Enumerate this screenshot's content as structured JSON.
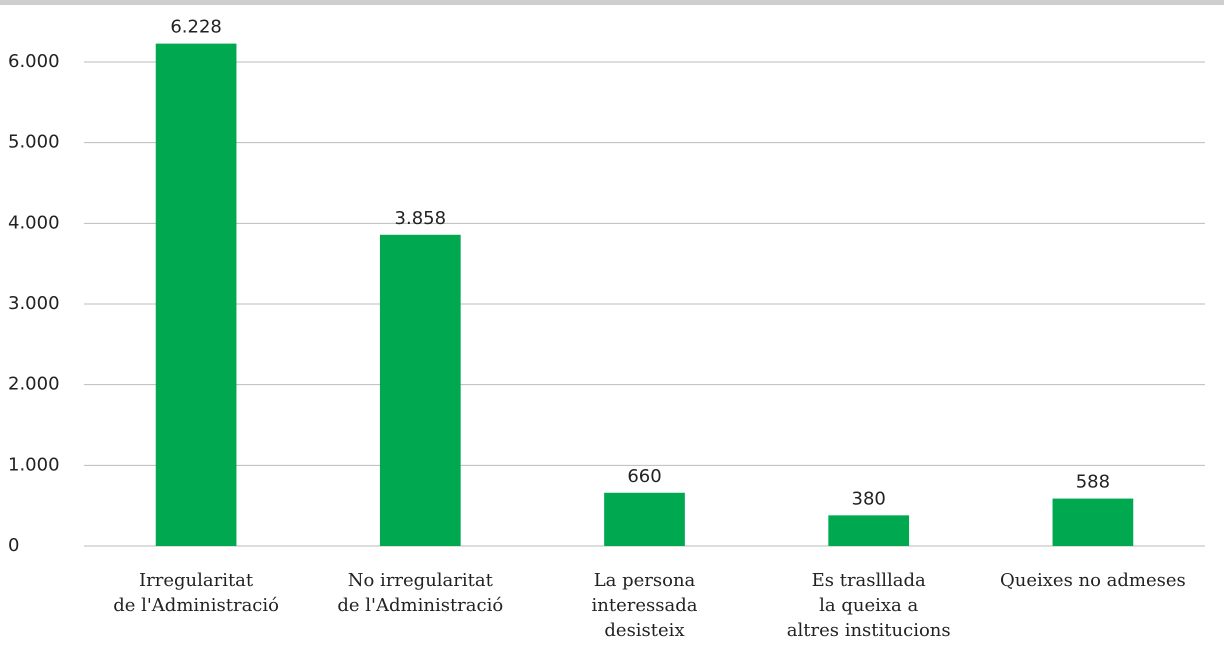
{
  "chart_data": {
    "type": "bar",
    "categories": [
      [
        "Irregularitat",
        "de l'Administració"
      ],
      [
        "No irregularitat",
        "de l'Administració"
      ],
      [
        "La persona",
        "interessada",
        "desisteix"
      ],
      [
        "Es traslllada",
        "la queixa a",
        "altres institucions"
      ],
      [
        "Queixes no admeses"
      ]
    ],
    "values": [
      6228,
      3858,
      660,
      380,
      588
    ],
    "value_labels": [
      "6.228",
      "3.858",
      "660",
      "380",
      "588"
    ],
    "color": "#00a94f",
    "ylim": [
      0,
      6000
    ],
    "yticks": [
      0,
      {
        "value": 1000,
        "label": "1.000"
      },
      {
        "value": 2000,
        "label": "2.000"
      },
      {
        "value": 3000,
        "label": "3.000"
      },
      {
        "value": 4000,
        "label": "4.000"
      },
      {
        "value": 5000,
        "label": "5.000"
      },
      {
        "value": 6000,
        "label": "6.000"
      }
    ],
    "grid": true
  }
}
